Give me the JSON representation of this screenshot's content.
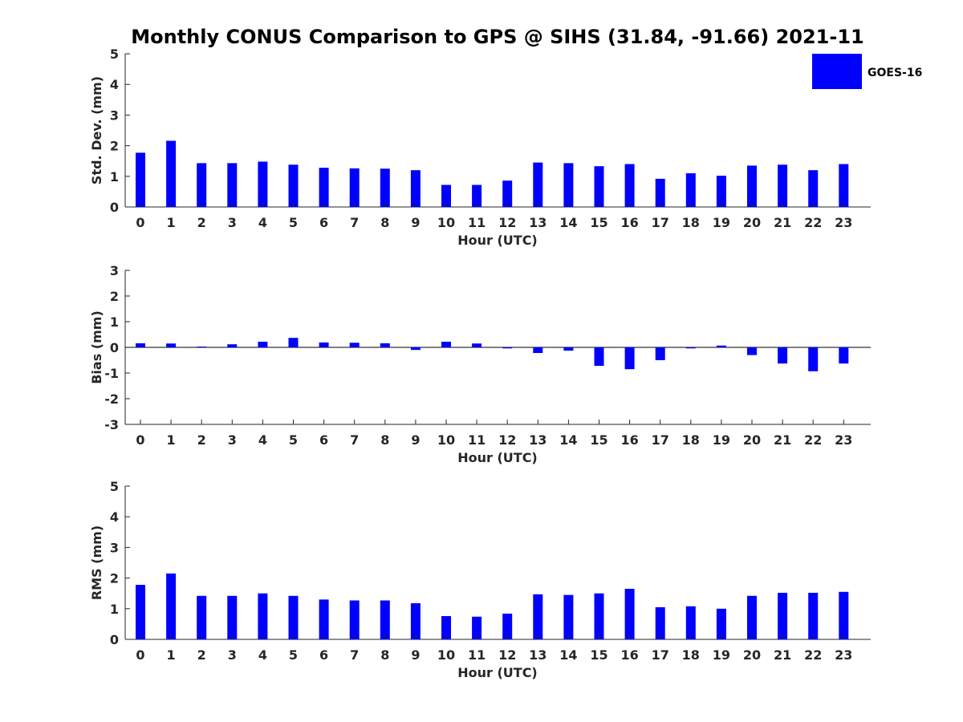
{
  "title": "Monthly CONUS Comparison to GPS @ SIHS (31.84, -91.66) 2021-11",
  "legend": {
    "label": "GOES-16",
    "color": "#0000ff",
    "placement": "top-right"
  },
  "chart_data": [
    {
      "type": "bar",
      "name": "std",
      "categories": [
        "0",
        "1",
        "2",
        "3",
        "4",
        "5",
        "6",
        "7",
        "8",
        "9",
        "10",
        "11",
        "12",
        "13",
        "14",
        "15",
        "16",
        "17",
        "18",
        "19",
        "20",
        "21",
        "22",
        "23"
      ],
      "series": [
        {
          "name": "GOES-16",
          "values": [
            1.77,
            2.16,
            1.43,
            1.43,
            1.48,
            1.38,
            1.28,
            1.26,
            1.25,
            1.2,
            0.72,
            0.72,
            0.86,
            1.45,
            1.43,
            1.33,
            1.4,
            0.92,
            1.1,
            1.02,
            1.35,
            1.38,
            1.2,
            1.4
          ]
        }
      ],
      "xlabel": "Hour (UTC)",
      "ylabel": "Std. Dev. (mm)",
      "ylim": [
        0,
        5
      ],
      "yticks": [
        0,
        1,
        2,
        3,
        4,
        5
      ],
      "grid": false
    },
    {
      "type": "bar",
      "name": "bias",
      "categories": [
        "0",
        "1",
        "2",
        "3",
        "4",
        "5",
        "6",
        "7",
        "8",
        "9",
        "10",
        "11",
        "12",
        "13",
        "14",
        "15",
        "16",
        "17",
        "18",
        "19",
        "20",
        "21",
        "22",
        "23"
      ],
      "series": [
        {
          "name": "GOES-16",
          "values": [
            0.16,
            0.15,
            0.03,
            0.12,
            0.22,
            0.37,
            0.19,
            0.18,
            0.16,
            -0.1,
            0.22,
            0.15,
            -0.04,
            -0.22,
            -0.13,
            -0.72,
            -0.85,
            -0.5,
            -0.04,
            0.07,
            -0.3,
            -0.63,
            -0.93,
            -0.63
          ]
        }
      ],
      "xlabel": "Hour (UTC)",
      "ylabel": "Bias (mm)",
      "ylim": [
        -3,
        3
      ],
      "yticks": [
        -3,
        -2,
        -1,
        0,
        1,
        2,
        3
      ],
      "grid": false
    },
    {
      "type": "bar",
      "name": "rms",
      "categories": [
        "0",
        "1",
        "2",
        "3",
        "4",
        "5",
        "6",
        "7",
        "8",
        "9",
        "10",
        "11",
        "12",
        "13",
        "14",
        "15",
        "16",
        "17",
        "18",
        "19",
        "20",
        "21",
        "22",
        "23"
      ],
      "series": [
        {
          "name": "GOES-16",
          "values": [
            1.78,
            2.15,
            1.42,
            1.42,
            1.5,
            1.42,
            1.3,
            1.27,
            1.27,
            1.18,
            0.76,
            0.74,
            0.84,
            1.47,
            1.45,
            1.5,
            1.65,
            1.05,
            1.08,
            1.0,
            1.42,
            1.52,
            1.52,
            1.55
          ]
        }
      ],
      "xlabel": "Hour (UTC)",
      "ylabel": "RMS (mm)",
      "ylim": [
        0,
        5
      ],
      "yticks": [
        0,
        1,
        2,
        3,
        4,
        5
      ],
      "grid": false
    }
  ]
}
